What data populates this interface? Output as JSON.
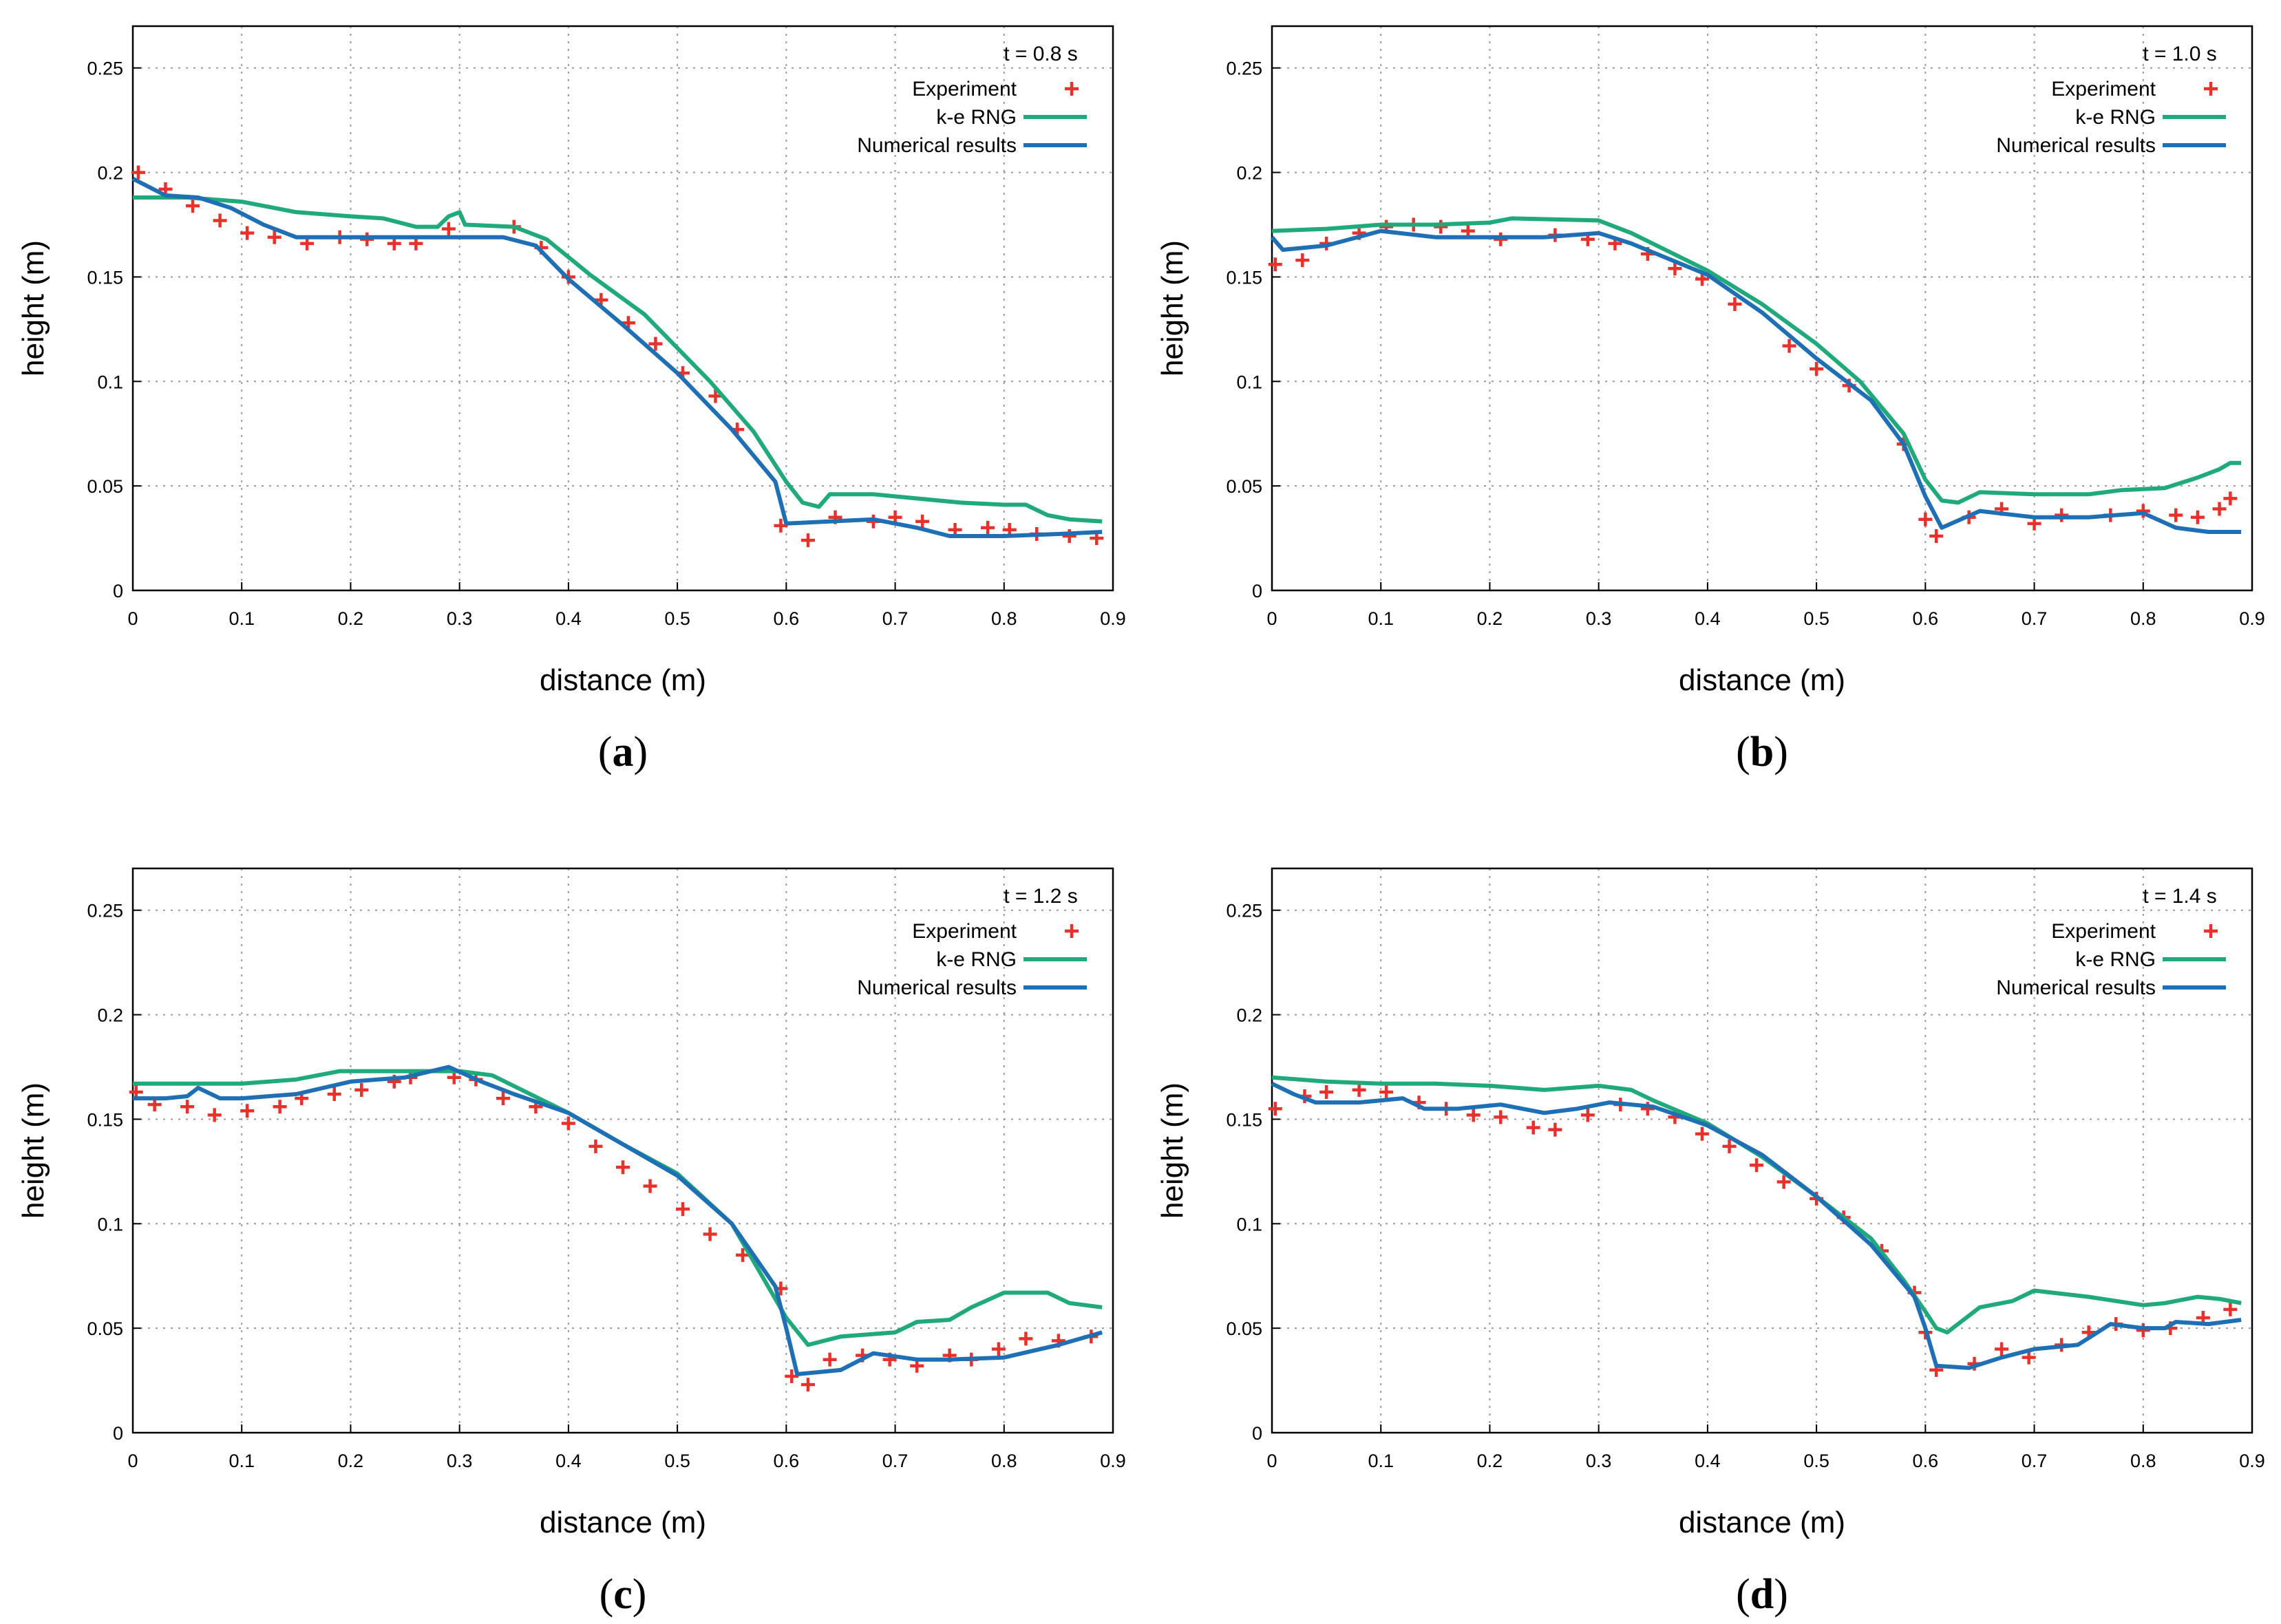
{
  "colors": {
    "experiment": "#e8312b",
    "ke_rng": "#20a97a",
    "numerical": "#1f6fb5",
    "grid": "#9a9a9a"
  },
  "chart_data": [
    {
      "type": "line",
      "caption": "a",
      "time_label": "t = 0.8 s",
      "xlabel": "distance (m)",
      "ylabel": "height (m)",
      "xlim": [
        0,
        0.9
      ],
      "ylim": [
        0,
        0.27
      ],
      "grid": true,
      "legend": "top-right",
      "xticks": [
        "0",
        "0.1",
        "0.2",
        "0.3",
        "0.4",
        "0.5",
        "0.6",
        "0.7",
        "0.8",
        "0.9"
      ],
      "yticks": [
        "0",
        "0.05",
        "0.1",
        "0.15",
        "0.2",
        "0.25"
      ],
      "series": [
        {
          "name": "Experiment",
          "kind": "points",
          "x": [
            0.005,
            0.03,
            0.055,
            0.08,
            0.105,
            0.13,
            0.16,
            0.19,
            0.215,
            0.24,
            0.26,
            0.29,
            0.35,
            0.375,
            0.4,
            0.43,
            0.455,
            0.48,
            0.505,
            0.535,
            0.555,
            0.595,
            0.62,
            0.645,
            0.68,
            0.7,
            0.725,
            0.755,
            0.785,
            0.805,
            0.83,
            0.86,
            0.885
          ],
          "y": [
            0.2,
            0.192,
            0.184,
            0.177,
            0.171,
            0.169,
            0.166,
            0.169,
            0.168,
            0.166,
            0.166,
            0.173,
            0.174,
            0.164,
            0.15,
            0.139,
            0.128,
            0.118,
            0.104,
            0.093,
            0.077,
            0.031,
            0.024,
            0.035,
            0.033,
            0.035,
            0.033,
            0.029,
            0.03,
            0.029,
            0.027,
            0.026,
            0.025
          ]
        },
        {
          "name": "k-e RNG",
          "kind": "line",
          "x": [
            0,
            0.05,
            0.1,
            0.15,
            0.2,
            0.23,
            0.26,
            0.28,
            0.29,
            0.3,
            0.305,
            0.35,
            0.38,
            0.42,
            0.47,
            0.53,
            0.57,
            0.6,
            0.615,
            0.63,
            0.64,
            0.68,
            0.72,
            0.76,
            0.8,
            0.82,
            0.84,
            0.86,
            0.89
          ],
          "y": [
            0.188,
            0.188,
            0.186,
            0.181,
            0.179,
            0.178,
            0.174,
            0.174,
            0.179,
            0.181,
            0.175,
            0.174,
            0.168,
            0.151,
            0.132,
            0.1,
            0.076,
            0.052,
            0.042,
            0.04,
            0.046,
            0.046,
            0.044,
            0.042,
            0.041,
            0.041,
            0.036,
            0.034,
            0.033
          ]
        },
        {
          "name": "Numerical results",
          "kind": "line",
          "x": [
            0,
            0.03,
            0.06,
            0.09,
            0.12,
            0.15,
            0.2,
            0.3,
            0.34,
            0.37,
            0.4,
            0.45,
            0.5,
            0.55,
            0.59,
            0.6,
            0.64,
            0.68,
            0.72,
            0.75,
            0.8,
            0.85,
            0.89
          ],
          "y": [
            0.197,
            0.189,
            0.188,
            0.183,
            0.175,
            0.169,
            0.169,
            0.169,
            0.169,
            0.165,
            0.149,
            0.127,
            0.104,
            0.077,
            0.052,
            0.032,
            0.033,
            0.034,
            0.03,
            0.026,
            0.026,
            0.027,
            0.028
          ]
        }
      ]
    },
    {
      "type": "line",
      "caption": "b",
      "time_label": "t = 1.0 s",
      "xlabel": "distance (m)",
      "ylabel": "height (m)",
      "xlim": [
        0,
        0.9
      ],
      "ylim": [
        0,
        0.27
      ],
      "grid": true,
      "legend": "top-right",
      "xticks": [
        "0",
        "0.1",
        "0.2",
        "0.3",
        "0.4",
        "0.5",
        "0.6",
        "0.7",
        "0.8",
        "0.9"
      ],
      "yticks": [
        "0",
        "0.05",
        "0.1",
        "0.15",
        "0.2",
        "0.25"
      ],
      "series": [
        {
          "name": "Experiment",
          "kind": "points",
          "x": [
            0.003,
            0.028,
            0.05,
            0.08,
            0.105,
            0.13,
            0.155,
            0.18,
            0.21,
            0.26,
            0.29,
            0.315,
            0.345,
            0.37,
            0.395,
            0.425,
            0.475,
            0.5,
            0.53,
            0.58,
            0.6,
            0.61,
            0.64,
            0.67,
            0.7,
            0.725,
            0.77,
            0.8,
            0.83,
            0.85,
            0.87,
            0.88
          ],
          "y": [
            0.156,
            0.158,
            0.166,
            0.171,
            0.174,
            0.175,
            0.174,
            0.172,
            0.168,
            0.17,
            0.168,
            0.166,
            0.161,
            0.154,
            0.149,
            0.137,
            0.117,
            0.106,
            0.098,
            0.07,
            0.034,
            0.026,
            0.035,
            0.039,
            0.032,
            0.036,
            0.036,
            0.038,
            0.036,
            0.035,
            0.039,
            0.044
          ]
        },
        {
          "name": "k-e RNG",
          "kind": "line",
          "x": [
            0,
            0.05,
            0.1,
            0.15,
            0.2,
            0.22,
            0.3,
            0.33,
            0.4,
            0.45,
            0.5,
            0.54,
            0.58,
            0.6,
            0.615,
            0.63,
            0.65,
            0.7,
            0.75,
            0.78,
            0.82,
            0.85,
            0.87,
            0.88,
            0.89
          ],
          "y": [
            0.172,
            0.173,
            0.175,
            0.175,
            0.176,
            0.178,
            0.177,
            0.171,
            0.153,
            0.137,
            0.118,
            0.1,
            0.075,
            0.053,
            0.043,
            0.042,
            0.047,
            0.046,
            0.046,
            0.048,
            0.049,
            0.054,
            0.058,
            0.061,
            0.061
          ]
        },
        {
          "name": "Numerical results",
          "kind": "line",
          "x": [
            0,
            0.01,
            0.05,
            0.1,
            0.15,
            0.2,
            0.25,
            0.3,
            0.33,
            0.4,
            0.45,
            0.5,
            0.55,
            0.58,
            0.6,
            0.615,
            0.65,
            0.7,
            0.75,
            0.8,
            0.83,
            0.86,
            0.89
          ],
          "y": [
            0.169,
            0.163,
            0.165,
            0.172,
            0.169,
            0.169,
            0.169,
            0.171,
            0.166,
            0.151,
            0.133,
            0.111,
            0.091,
            0.07,
            0.045,
            0.03,
            0.038,
            0.035,
            0.035,
            0.037,
            0.03,
            0.028,
            0.028
          ]
        }
      ]
    },
    {
      "type": "line",
      "caption": "c",
      "time_label": "t = 1.2 s",
      "xlabel": "distance (m)",
      "ylabel": "height (m)",
      "xlim": [
        0,
        0.9
      ],
      "ylim": [
        0,
        0.27
      ],
      "grid": true,
      "legend": "top-right",
      "xticks": [
        "0",
        "0.1",
        "0.2",
        "0.3",
        "0.4",
        "0.5",
        "0.6",
        "0.7",
        "0.8",
        "0.9"
      ],
      "yticks": [
        "0",
        "0.05",
        "0.1",
        "0.15",
        "0.2",
        "0.25"
      ],
      "series": [
        {
          "name": "Experiment",
          "kind": "points",
          "x": [
            0.003,
            0.02,
            0.05,
            0.075,
            0.105,
            0.135,
            0.155,
            0.185,
            0.21,
            0.24,
            0.255,
            0.295,
            0.315,
            0.34,
            0.37,
            0.4,
            0.425,
            0.45,
            0.475,
            0.505,
            0.53,
            0.56,
            0.595,
            0.605,
            0.62,
            0.64,
            0.67,
            0.695,
            0.72,
            0.75,
            0.77,
            0.795,
            0.82,
            0.85,
            0.88
          ],
          "y": [
            0.163,
            0.157,
            0.156,
            0.152,
            0.154,
            0.156,
            0.16,
            0.162,
            0.164,
            0.168,
            0.17,
            0.17,
            0.169,
            0.16,
            0.156,
            0.148,
            0.137,
            0.127,
            0.118,
            0.107,
            0.095,
            0.085,
            0.069,
            0.027,
            0.023,
            0.035,
            0.037,
            0.035,
            0.032,
            0.037,
            0.035,
            0.04,
            0.045,
            0.044,
            0.046
          ]
        },
        {
          "name": "k-e RNG",
          "kind": "line",
          "x": [
            0,
            0.05,
            0.1,
            0.15,
            0.19,
            0.25,
            0.3,
            0.33,
            0.4,
            0.45,
            0.5,
            0.55,
            0.6,
            0.62,
            0.65,
            0.7,
            0.72,
            0.75,
            0.77,
            0.8,
            0.84,
            0.86,
            0.89
          ],
          "y": [
            0.167,
            0.167,
            0.167,
            0.169,
            0.173,
            0.173,
            0.173,
            0.171,
            0.153,
            0.138,
            0.124,
            0.1,
            0.055,
            0.042,
            0.046,
            0.048,
            0.053,
            0.054,
            0.06,
            0.067,
            0.067,
            0.062,
            0.06
          ]
        },
        {
          "name": "Numerical results",
          "kind": "line",
          "x": [
            0,
            0.03,
            0.05,
            0.06,
            0.08,
            0.1,
            0.15,
            0.2,
            0.25,
            0.29,
            0.32,
            0.35,
            0.4,
            0.45,
            0.5,
            0.55,
            0.59,
            0.6,
            0.61,
            0.65,
            0.68,
            0.72,
            0.75,
            0.8,
            0.85,
            0.89
          ],
          "y": [
            0.16,
            0.16,
            0.161,
            0.165,
            0.16,
            0.16,
            0.162,
            0.168,
            0.17,
            0.175,
            0.168,
            0.162,
            0.153,
            0.138,
            0.123,
            0.1,
            0.07,
            0.05,
            0.028,
            0.03,
            0.038,
            0.035,
            0.035,
            0.036,
            0.042,
            0.048
          ]
        }
      ]
    },
    {
      "type": "line",
      "caption": "d",
      "time_label": "t = 1.4 s",
      "xlabel": "distance (m)",
      "ylabel": "height (m)",
      "xlim": [
        0,
        0.9
      ],
      "ylim": [
        0,
        0.27
      ],
      "grid": true,
      "legend": "top-right",
      "xticks": [
        "0",
        "0.1",
        "0.2",
        "0.3",
        "0.4",
        "0.5",
        "0.6",
        "0.7",
        "0.8",
        "0.9"
      ],
      "yticks": [
        "0",
        "0.05",
        "0.1",
        "0.15",
        "0.2",
        "0.25"
      ],
      "series": [
        {
          "name": "Experiment",
          "kind": "points",
          "x": [
            0.003,
            0.03,
            0.05,
            0.08,
            0.105,
            0.135,
            0.16,
            0.185,
            0.21,
            0.24,
            0.26,
            0.29,
            0.32,
            0.345,
            0.37,
            0.395,
            0.42,
            0.445,
            0.47,
            0.5,
            0.525,
            0.56,
            0.59,
            0.6,
            0.61,
            0.645,
            0.67,
            0.695,
            0.725,
            0.75,
            0.775,
            0.8,
            0.825,
            0.855,
            0.88
          ],
          "y": [
            0.155,
            0.161,
            0.163,
            0.164,
            0.163,
            0.158,
            0.155,
            0.152,
            0.151,
            0.146,
            0.145,
            0.152,
            0.157,
            0.155,
            0.151,
            0.143,
            0.137,
            0.128,
            0.12,
            0.112,
            0.103,
            0.087,
            0.067,
            0.048,
            0.03,
            0.033,
            0.04,
            0.036,
            0.042,
            0.048,
            0.052,
            0.049,
            0.05,
            0.055,
            0.059
          ]
        },
        {
          "name": "k-e RNG",
          "kind": "line",
          "x": [
            0,
            0.05,
            0.1,
            0.15,
            0.2,
            0.25,
            0.3,
            0.33,
            0.35,
            0.4,
            0.45,
            0.5,
            0.55,
            0.58,
            0.6,
            0.61,
            0.62,
            0.65,
            0.68,
            0.7,
            0.75,
            0.8,
            0.82,
            0.85,
            0.87,
            0.89
          ],
          "y": [
            0.17,
            0.168,
            0.167,
            0.167,
            0.166,
            0.164,
            0.166,
            0.164,
            0.159,
            0.148,
            0.132,
            0.113,
            0.093,
            0.073,
            0.058,
            0.05,
            0.048,
            0.06,
            0.063,
            0.068,
            0.065,
            0.061,
            0.062,
            0.065,
            0.064,
            0.062
          ]
        },
        {
          "name": "Numerical results",
          "kind": "line",
          "x": [
            0,
            0.02,
            0.04,
            0.08,
            0.12,
            0.14,
            0.17,
            0.21,
            0.25,
            0.28,
            0.31,
            0.35,
            0.4,
            0.45,
            0.5,
            0.55,
            0.59,
            0.6,
            0.61,
            0.64,
            0.67,
            0.7,
            0.74,
            0.77,
            0.8,
            0.82,
            0.83,
            0.86,
            0.89
          ],
          "y": [
            0.167,
            0.162,
            0.158,
            0.158,
            0.16,
            0.155,
            0.155,
            0.157,
            0.153,
            0.155,
            0.158,
            0.156,
            0.147,
            0.133,
            0.113,
            0.09,
            0.065,
            0.05,
            0.032,
            0.031,
            0.036,
            0.04,
            0.042,
            0.052,
            0.05,
            0.05,
            0.053,
            0.052,
            0.054
          ]
        }
      ]
    }
  ]
}
